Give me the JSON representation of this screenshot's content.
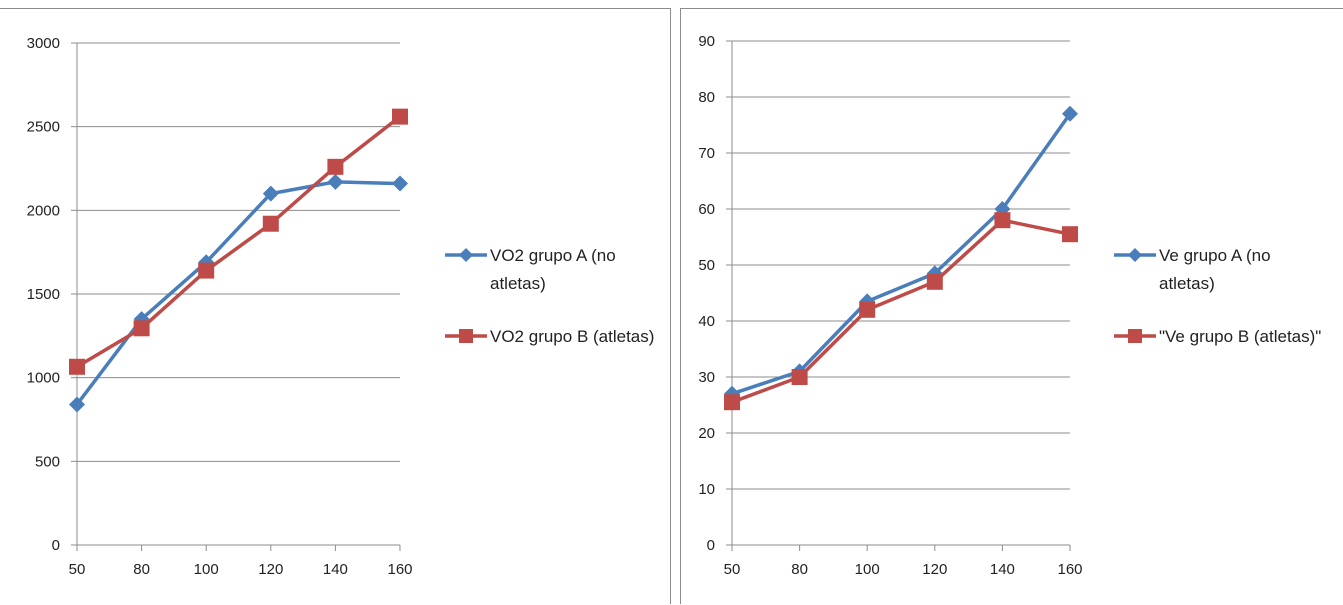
{
  "chart_data": [
    {
      "type": "line",
      "categories": [
        "50",
        "80",
        "100",
        "120",
        "140",
        "160"
      ],
      "ylim": [
        0,
        3000
      ],
      "yticks": [
        0,
        500,
        1000,
        1500,
        2000,
        2500,
        3000
      ],
      "grid": true,
      "legend_position": "right",
      "series": [
        {
          "name": "VO2 grupo A (no atletas)",
          "legend_lines": [
            "VO2 grupo A (no",
            "atletas)"
          ],
          "color": "#4a7ebb",
          "marker": "diamond",
          "values": [
            840,
            1350,
            1690,
            2100,
            2170,
            2160
          ]
        },
        {
          "name": "VO2 grupo B (atletas)",
          "legend_lines": [
            "VO2 grupo B (atletas)"
          ],
          "color": "#be4b48",
          "marker": "square",
          "values": [
            1065,
            1295,
            1640,
            1920,
            2260,
            2560
          ]
        }
      ]
    },
    {
      "type": "line",
      "categories": [
        "50",
        "80",
        "100",
        "120",
        "140",
        "160"
      ],
      "ylim": [
        0,
        90
      ],
      "yticks": [
        0,
        10,
        20,
        30,
        40,
        50,
        60,
        70,
        80,
        90
      ],
      "grid": true,
      "legend_position": "right",
      "series": [
        {
          "name": "Ve grupo A (no atletas)",
          "legend_lines": [
            "Ve grupo A (no",
            "atletas)"
          ],
          "color": "#4a7ebb",
          "marker": "diamond",
          "values": [
            27,
            31,
            43.5,
            48.5,
            60,
            77
          ]
        },
        {
          "name": "\"Ve grupo B (atletas)\"",
          "legend_lines": [
            "\"Ve grupo B (atletas)\""
          ],
          "color": "#be4b48",
          "marker": "square",
          "values": [
            25.5,
            30,
            42,
            47,
            58,
            55.5
          ]
        }
      ]
    }
  ]
}
